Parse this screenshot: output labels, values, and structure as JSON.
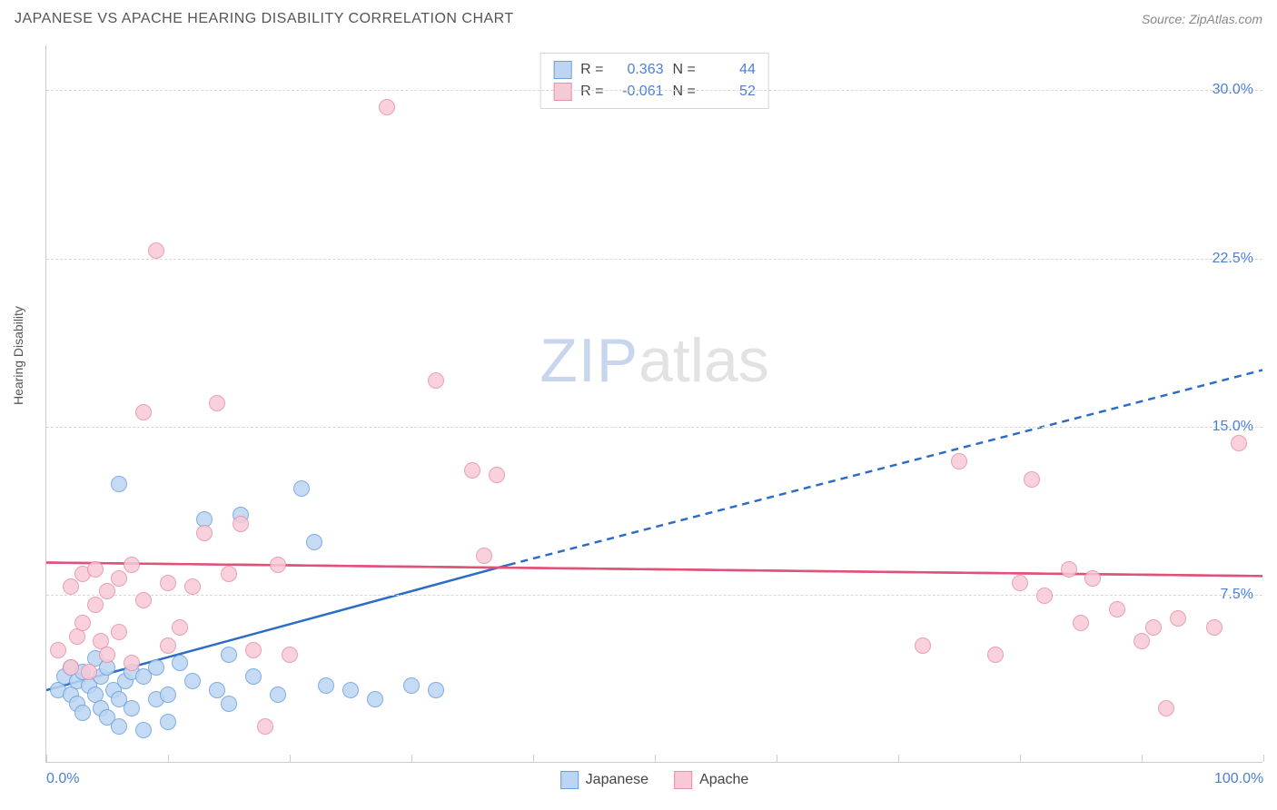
{
  "header": {
    "title": "JAPANESE VS APACHE HEARING DISABILITY CORRELATION CHART",
    "source_prefix": "Source: ",
    "source_name": "ZipAtlas.com"
  },
  "chart": {
    "type": "scatter",
    "ylabel": "Hearing Disability",
    "xlim": [
      0,
      100
    ],
    "ylim": [
      0,
      32
    ],
    "background_color": "#ffffff",
    "grid_color": "#d8d8d8",
    "axis_color": "#cccccc",
    "tick_label_color": "#4a7fd8",
    "tick_fontsize": 16,
    "label_fontsize": 14,
    "yticks": [
      7.5,
      15.0,
      22.5,
      30.0
    ],
    "ytick_labels": [
      "7.5%",
      "15.0%",
      "22.5%",
      "30.0%"
    ],
    "xticks": [
      0,
      10,
      20,
      30,
      40,
      50,
      60,
      70,
      80,
      90,
      100
    ],
    "xtick_labels_shown": {
      "0": "0.0%",
      "100": "100.0%"
    },
    "point_radius": 9,
    "series": [
      {
        "name": "Japanese",
        "fill": "#bcd5f2",
        "stroke": "#6a9fe0",
        "r_value": "0.363",
        "n_value": "44",
        "trend": {
          "color": "#2b6cc4",
          "width": 2.5,
          "start": [
            0,
            3.2
          ],
          "solid_end": [
            38,
            8.8
          ],
          "dashed_end": [
            100,
            17.5
          ]
        },
        "points": [
          [
            1,
            3.2
          ],
          [
            1.5,
            3.8
          ],
          [
            2,
            3.0
          ],
          [
            2,
            4.2
          ],
          [
            2.5,
            2.6
          ],
          [
            2.5,
            3.6
          ],
          [
            3,
            4.0
          ],
          [
            3,
            2.2
          ],
          [
            3.5,
            3.4
          ],
          [
            4,
            3.0
          ],
          [
            4,
            4.6
          ],
          [
            4.5,
            2.4
          ],
          [
            4.5,
            3.8
          ],
          [
            5,
            2.0
          ],
          [
            5,
            4.2
          ],
          [
            5.5,
            3.2
          ],
          [
            6,
            2.8
          ],
          [
            6,
            1.6
          ],
          [
            6,
            12.4
          ],
          [
            6.5,
            3.6
          ],
          [
            7,
            4.0
          ],
          [
            7,
            2.4
          ],
          [
            8,
            3.8
          ],
          [
            8,
            1.4
          ],
          [
            9,
            4.2
          ],
          [
            9,
            2.8
          ],
          [
            10,
            3.0
          ],
          [
            10,
            1.8
          ],
          [
            11,
            4.4
          ],
          [
            12,
            3.6
          ],
          [
            13,
            10.8
          ],
          [
            14,
            3.2
          ],
          [
            15,
            4.8
          ],
          [
            15,
            2.6
          ],
          [
            16,
            11.0
          ],
          [
            17,
            3.8
          ],
          [
            19,
            3.0
          ],
          [
            21,
            12.2
          ],
          [
            22,
            9.8
          ],
          [
            23,
            3.4
          ],
          [
            25,
            3.2
          ],
          [
            27,
            2.8
          ],
          [
            30,
            3.4
          ],
          [
            32,
            3.2
          ]
        ]
      },
      {
        "name": "Apache",
        "fill": "#f7c9d6",
        "stroke": "#e88fa8",
        "r_value": "-0.061",
        "n_value": "52",
        "trend": {
          "color": "#e0527a",
          "width": 2.5,
          "start": [
            0,
            8.9
          ],
          "solid_end": [
            100,
            8.3
          ],
          "dashed_end": null
        },
        "points": [
          [
            1,
            5.0
          ],
          [
            2,
            4.2
          ],
          [
            2,
            7.8
          ],
          [
            2.5,
            5.6
          ],
          [
            3,
            8.4
          ],
          [
            3,
            6.2
          ],
          [
            3.5,
            4.0
          ],
          [
            4,
            7.0
          ],
          [
            4,
            8.6
          ],
          [
            4.5,
            5.4
          ],
          [
            5,
            7.6
          ],
          [
            5,
            4.8
          ],
          [
            6,
            8.2
          ],
          [
            6,
            5.8
          ],
          [
            7,
            8.8
          ],
          [
            7,
            4.4
          ],
          [
            8,
            7.2
          ],
          [
            8,
            15.6
          ],
          [
            9,
            22.8
          ],
          [
            10,
            8.0
          ],
          [
            10,
            5.2
          ],
          [
            11,
            6.0
          ],
          [
            12,
            7.8
          ],
          [
            13,
            10.2
          ],
          [
            14,
            16.0
          ],
          [
            15,
            8.4
          ],
          [
            16,
            10.6
          ],
          [
            17,
            5.0
          ],
          [
            18,
            1.6
          ],
          [
            19,
            8.8
          ],
          [
            20,
            4.8
          ],
          [
            28,
            29.2
          ],
          [
            32,
            17.0
          ],
          [
            35,
            13.0
          ],
          [
            36,
            9.2
          ],
          [
            37,
            12.8
          ],
          [
            72,
            5.2
          ],
          [
            75,
            13.4
          ],
          [
            78,
            4.8
          ],
          [
            80,
            8.0
          ],
          [
            81,
            12.6
          ],
          [
            82,
            7.4
          ],
          [
            84,
            8.6
          ],
          [
            85,
            6.2
          ],
          [
            86,
            8.2
          ],
          [
            88,
            6.8
          ],
          [
            90,
            5.4
          ],
          [
            91,
            6.0
          ],
          [
            92,
            2.4
          ],
          [
            93,
            6.4
          ],
          [
            96,
            6.0
          ],
          [
            98,
            14.2
          ]
        ]
      }
    ],
    "watermark": {
      "part1": "ZIP",
      "part2": "atlas"
    }
  },
  "stats_box": {
    "r_label": "R =",
    "n_label": "N ="
  },
  "bottom_legend": {
    "labels": [
      "Japanese",
      "Apache"
    ]
  }
}
